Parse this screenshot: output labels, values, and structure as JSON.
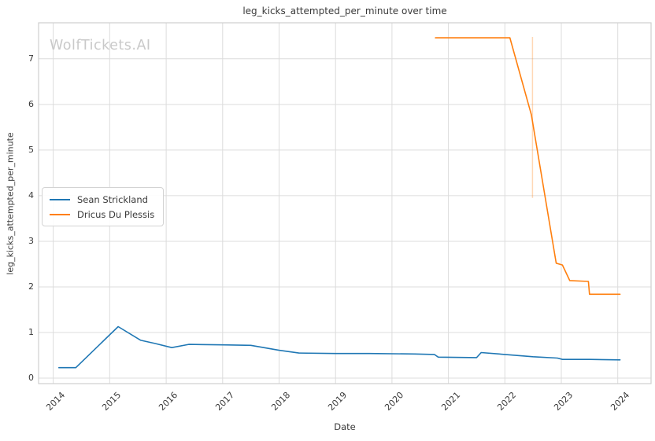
{
  "watermark": "WolfTickets.AI",
  "chart_data": {
    "type": "line",
    "title": "leg_kicks_attempted_per_minute over time",
    "xlabel": "Date",
    "ylabel": "leg_kicks_attempted_per_minute",
    "xlim": [
      2013.74,
      2024.59
    ],
    "ylim": [
      -0.12,
      7.79
    ],
    "x_ticks": [
      2014,
      2015,
      2016,
      2017,
      2018,
      2019,
      2020,
      2021,
      2022,
      2023,
      2024
    ],
    "y_ticks": [
      0,
      1,
      2,
      3,
      4,
      5,
      6,
      7
    ],
    "grid": true,
    "grid_color": "#dcdcdc",
    "spine_color": "#cfcfcf",
    "legend_position": "center-left",
    "series": [
      {
        "name": "Sean Strickland",
        "color": "#1f77b4",
        "x": [
          2014.1,
          2014.4,
          2015.15,
          2015.55,
          2015.8,
          2016.1,
          2016.4,
          2017.0,
          2017.5,
          2018.0,
          2018.35,
          2019.0,
          2019.6,
          2020.4,
          2020.75,
          2020.82,
          2021.5,
          2021.58,
          2022.0,
          2022.5,
          2022.93,
          2023.02,
          2023.5,
          2024.04
        ],
        "y": [
          0.23,
          0.23,
          1.13,
          0.83,
          0.76,
          0.67,
          0.74,
          0.73,
          0.72,
          0.61,
          0.55,
          0.54,
          0.54,
          0.53,
          0.52,
          0.46,
          0.45,
          0.56,
          0.52,
          0.47,
          0.44,
          0.41,
          0.41,
          0.4
        ]
      },
      {
        "name": "Dricus Du Plessis",
        "color": "#ff7f0e",
        "x": [
          2020.77,
          2022.09,
          2022.47,
          2022.91,
          2023.02,
          2023.15,
          2023.48,
          2023.5,
          2024.04
        ],
        "y": [
          7.46,
          7.46,
          5.77,
          2.52,
          2.48,
          2.14,
          2.12,
          1.84,
          1.84
        ]
      }
    ],
    "error_bar": {
      "series": "Dricus Du Plessis",
      "x": 2022.49,
      "y_min": 3.95,
      "y_max": 7.48,
      "color": "rgba(255,127,14,0.3)"
    }
  }
}
